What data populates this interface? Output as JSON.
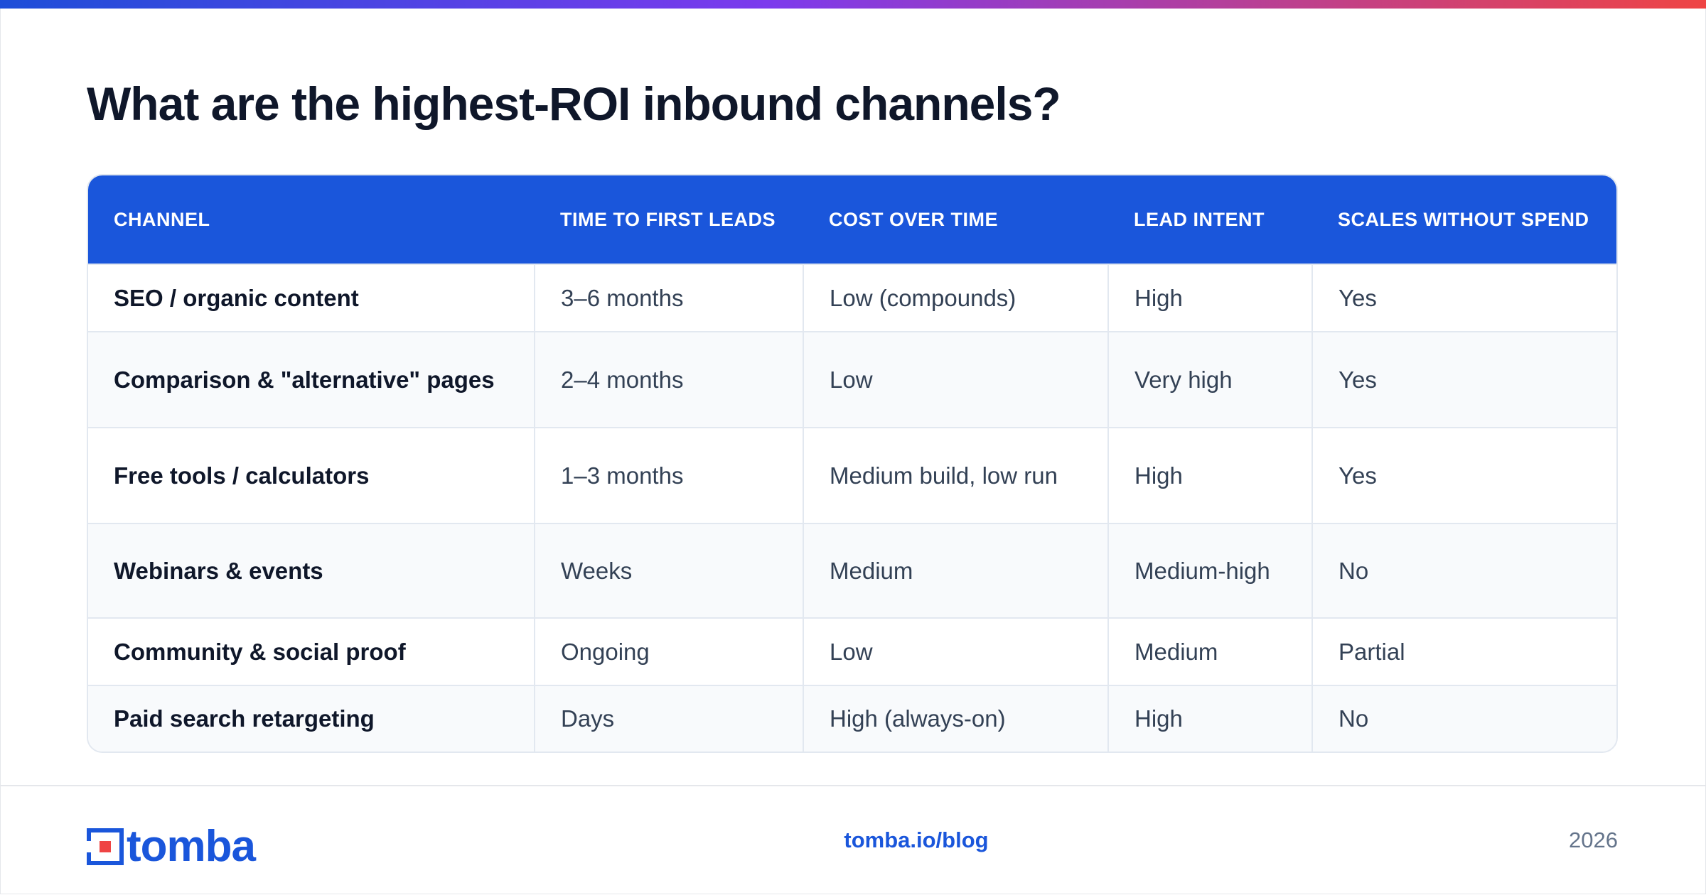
{
  "header": {
    "title": "What are the highest-ROI inbound channels?"
  },
  "table": {
    "columns": [
      "CHANNEL",
      "TIME TO FIRST LEADS",
      "COST OVER TIME",
      "LEAD INTENT",
      "SCALES WITHOUT SPEND"
    ],
    "rows": [
      [
        "SEO / organic content",
        "3–6 months",
        "Low (compounds)",
        "High",
        "Yes"
      ],
      [
        "Comparison & \"alternative\" pages",
        "2–4 months",
        "Low",
        "Very high",
        "Yes"
      ],
      [
        "Free tools / calculators",
        "1–3 months",
        "Medium build, low run",
        "High",
        "Yes"
      ],
      [
        "Webinars & events",
        "Weeks",
        "Medium",
        "Medium-high",
        "No"
      ],
      [
        "Community & social proof",
        "Ongoing",
        "Low",
        "Medium",
        "Partial"
      ],
      [
        "Paid search retargeting",
        "Days",
        "High (always-on)",
        "High",
        "No"
      ]
    ]
  },
  "footer": {
    "logo": "tomba",
    "link": "tomba.io/blog",
    "year": "2026"
  }
}
